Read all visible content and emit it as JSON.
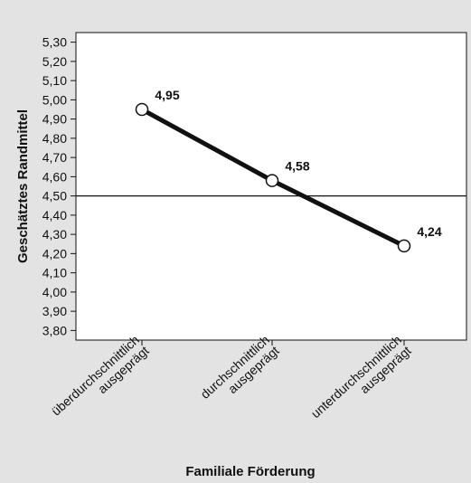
{
  "chart_data": {
    "type": "line",
    "title": "",
    "xlabel": "Familiale Förderung",
    "ylabel": "Geschätztes Randmittel",
    "categories": [
      [
        "überdurchschnittlich",
        "ausgeprägt"
      ],
      [
        "durchschnittlich",
        "ausgeprägt"
      ],
      [
        "unterdurchschnittlich",
        "ausgeprägt"
      ]
    ],
    "series": [
      {
        "values": [
          4.95,
          4.58,
          4.24
        ],
        "data_labels": [
          "4,95",
          "4,58",
          "4,24"
        ]
      }
    ],
    "reference_line": 4.5,
    "ylim": [
      3.75,
      5.35
    ],
    "yticks": [
      3.8,
      3.9,
      4.0,
      4.1,
      4.2,
      4.3,
      4.4,
      4.5,
      4.6,
      4.7,
      4.8,
      4.9,
      5.0,
      5.1,
      5.2,
      5.3
    ],
    "ytick_labels": [
      "3,80",
      "3,90",
      "4,00",
      "4,10",
      "4,20",
      "4,30",
      "4,40",
      "4,50",
      "4,60",
      "4,70",
      "4,80",
      "4,90",
      "5,00",
      "5,10",
      "5,20",
      "5,30"
    ],
    "grid": false,
    "legend": "none",
    "colors": {
      "background": "#e3e3e3",
      "plot_background": "#ffffff",
      "line": "#111111",
      "marker_fill": "#ffffff"
    }
  }
}
